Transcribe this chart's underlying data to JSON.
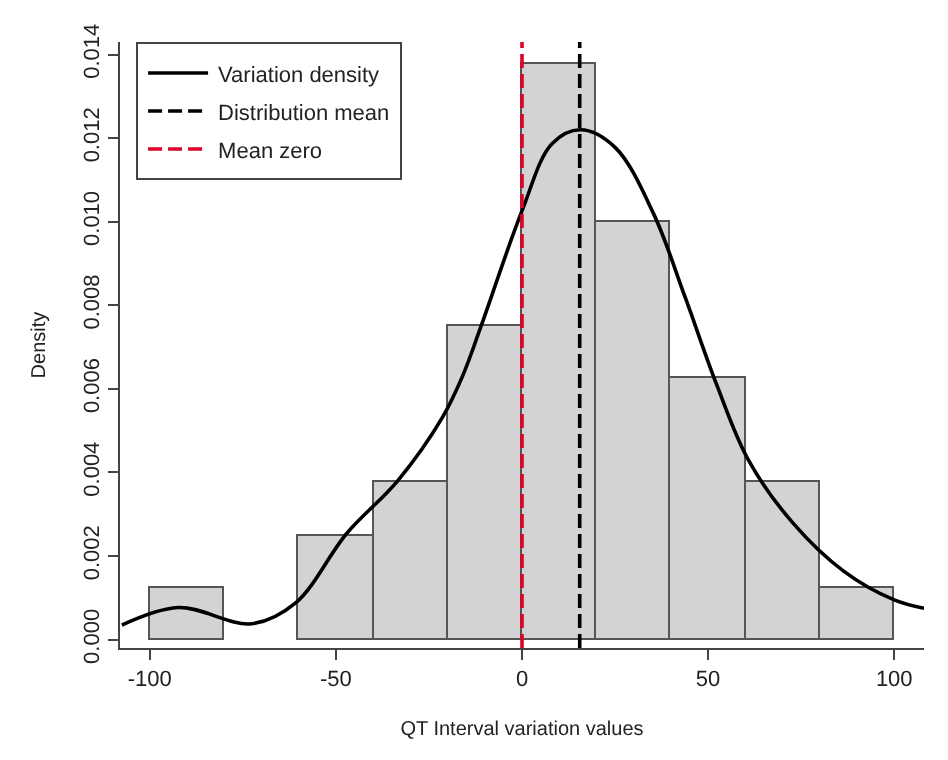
{
  "chart_data": {
    "type": "histogram",
    "xlabel": "QT Interval variation values",
    "ylabel": "Density",
    "bins": [
      -100,
      -80,
      -60,
      -40,
      -20,
      0,
      20,
      40,
      60,
      80,
      100
    ],
    "values": [
      0.00125,
      0,
      0.0025,
      0.00375,
      0.0075,
      0.01375,
      0.01,
      0.00625,
      0.00375,
      0.00125
    ],
    "color": "#d3d3d3",
    "series": [
      {
        "type": "line",
        "name": "Variation density",
        "color": "#000000",
        "line_style": "solid",
        "x": [
          -107.5,
          -92.3,
          -72.7,
          -60.8,
          -47.1,
          -33.4,
          -21.5,
          -16,
          -11,
          0,
          8,
          15.7,
          25,
          35.3,
          43.8,
          52.3,
          60.8,
          72.7,
          86.4,
          100,
          108
        ],
        "values": [
          0.00035,
          0.00077,
          0.00038,
          0.00088,
          0.00254,
          0.0038,
          0.0053,
          0.0063,
          0.0075,
          0.01026,
          0.01186,
          0.0122,
          0.01178,
          0.0102,
          0.0082,
          0.0061,
          0.0043,
          0.0028,
          0.00164,
          0.00095,
          0.00075
        ]
      },
      {
        "type": "line",
        "name": "Distribution mean",
        "color": "#000000",
        "line_style": "dashed",
        "x": [
          15.5,
          15.5
        ],
        "values": [
          -0.0002,
          0.0143
        ]
      },
      {
        "type": "line",
        "name": "Mean zero",
        "color": "#e0002a",
        "line_style": "dashed",
        "x": [
          0,
          0
        ],
        "values": [
          -0.0002,
          0.0143
        ]
      }
    ],
    "xlim": [
      -108,
      108
    ],
    "ylim": [
      -0.0002,
      0.0143
    ],
    "xticks": [
      -100,
      -50,
      0,
      50,
      100
    ],
    "yticks": [
      {
        "value": 0,
        "label": "0.000"
      },
      {
        "value": 0.002,
        "label": "0.002"
      },
      {
        "value": 0.004,
        "label": "0.004"
      },
      {
        "value": 0.006,
        "label": "0.006"
      },
      {
        "value": 0.008,
        "label": "0.008"
      },
      {
        "value": 0.01,
        "label": "0.010"
      },
      {
        "value": 0.012,
        "label": "0.012"
      },
      {
        "value": 0.014,
        "label": "0.014"
      }
    ],
    "legend": "top left"
  }
}
